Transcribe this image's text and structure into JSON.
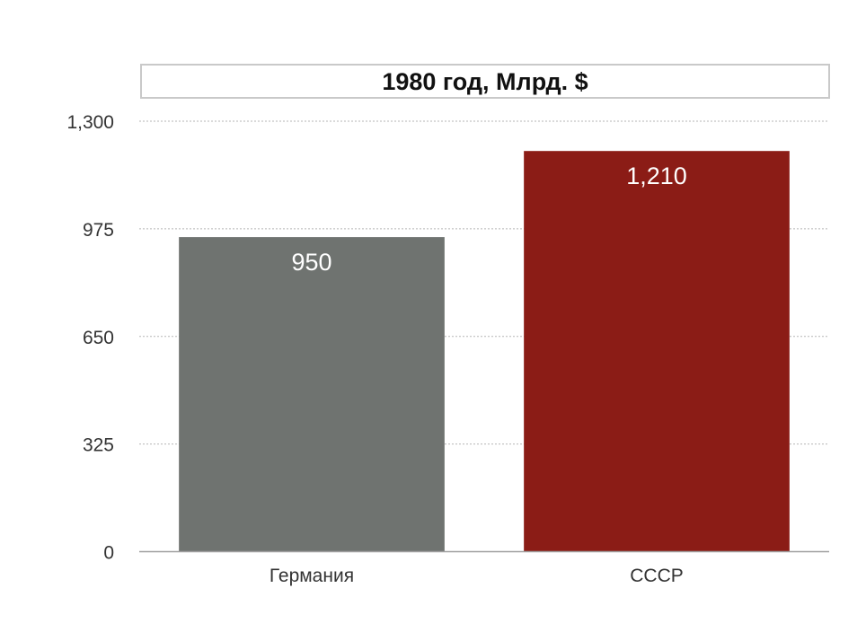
{
  "chart_data": {
    "type": "bar",
    "title": "1980 год, Млрд. $",
    "categories": [
      "Германия",
      "СССР"
    ],
    "values": [
      950,
      1210
    ],
    "value_labels": [
      "950",
      "1,210"
    ],
    "colors": [
      "#6f7370",
      "#8b1c16"
    ],
    "ylim": [
      0,
      1300
    ],
    "yticks": [
      0,
      325,
      650,
      975,
      1300
    ],
    "ytick_labels": [
      "0",
      "325",
      "650",
      "975",
      "1,300"
    ],
    "grid": true,
    "xlabel": "",
    "ylabel": ""
  }
}
